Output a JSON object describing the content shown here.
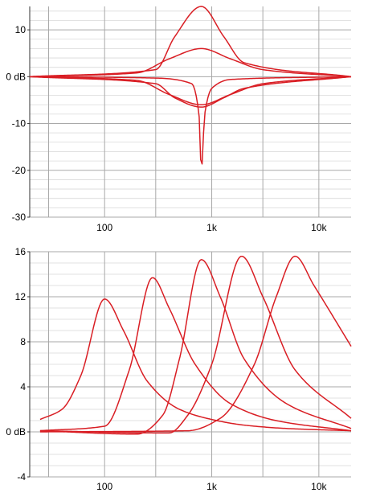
{
  "colors": {
    "curve": "#d91e24",
    "grid_major": "#a8a8a8",
    "grid_minor": "#d9d9d9",
    "axis": "#333333",
    "background": "#ffffff"
  },
  "chart_data": [
    {
      "type": "line",
      "x_scale": "log",
      "xlim": [
        20,
        20000
      ],
      "ylim": [
        -30,
        15
      ],
      "xticks": [
        {
          "value": 100,
          "label": "100"
        },
        {
          "value": 1000,
          "label": "1k"
        },
        {
          "value": 10000,
          "label": "10k"
        }
      ],
      "yticks": [
        {
          "value": 10,
          "label": "10"
        },
        {
          "value": 0,
          "label": "0 dB"
        },
        {
          "value": -10,
          "label": "-10"
        },
        {
          "value": -20,
          "label": "-20"
        },
        {
          "value": -30,
          "label": "-30"
        }
      ],
      "grid": true,
      "series": [
        {
          "x": [
            20,
            300,
            450,
            800,
            1300,
            2000,
            20000
          ],
          "y": [
            0,
            1.5,
            8.5,
            15,
            8.5,
            3,
            0
          ]
        },
        {
          "x": [
            20,
            200,
            400,
            800,
            1500,
            3000,
            20000
          ],
          "y": [
            0,
            0.8,
            3.8,
            6,
            3.8,
            1.5,
            0
          ]
        },
        {
          "x": [
            20,
            200,
            400,
            800,
            1500,
            3000,
            20000
          ],
          "y": [
            0,
            -0.8,
            -3.8,
            -6,
            -3.8,
            -1.5,
            0
          ]
        },
        {
          "x": [
            20,
            300,
            450,
            800,
            1300,
            2000,
            20000
          ],
          "y": [
            0,
            -1.5,
            -4.5,
            -6.5,
            -4.5,
            -2.5,
            0
          ]
        },
        {
          "x": [
            20,
            300,
            650,
            760,
            800,
            860,
            1000,
            1500,
            20000
          ],
          "y": [
            0,
            -0.3,
            -1.5,
            -8,
            -20,
            -8,
            -2.5,
            -0.6,
            0
          ]
        }
      ]
    },
    {
      "type": "line",
      "x_scale": "log",
      "xlim": [
        20,
        20000
      ],
      "ylim": [
        -4,
        16
      ],
      "xticks": [
        {
          "value": 100,
          "label": "100"
        },
        {
          "value": 1000,
          "label": "1k"
        },
        {
          "value": 10000,
          "label": "10k"
        }
      ],
      "yticks": [
        {
          "value": 16,
          "label": "16"
        },
        {
          "value": 12,
          "label": "12"
        },
        {
          "value": 8,
          "label": "8"
        },
        {
          "value": 4,
          "label": "4"
        },
        {
          "value": 0,
          "label": "0 dB"
        },
        {
          "value": -4,
          "label": "-4"
        }
      ],
      "grid": true,
      "series": [
        {
          "x": [
            25,
            40,
            60,
            100,
            150,
            250,
            500,
            1000,
            2000,
            5000,
            20000
          ],
          "y": [
            1.1,
            2,
            5,
            11.8,
            9,
            4.5,
            2,
            1.1,
            0.6,
            0.3,
            0.1
          ]
        },
        {
          "x": [
            25,
            100,
            170,
            280,
            400,
            700,
            1500,
            4000,
            20000
          ],
          "y": [
            0.1,
            0.5,
            5.5,
            13.7,
            11,
            6,
            2.5,
            1,
            0.1
          ]
        },
        {
          "x": [
            25,
            200,
            350,
            500,
            800,
            1200,
            2000,
            5000,
            20000
          ],
          "y": [
            0.1,
            -0.2,
            1.5,
            6.5,
            15.3,
            12,
            6.5,
            2.5,
            0.3
          ]
        },
        {
          "x": [
            25,
            400,
            600,
            1000,
            1900,
            3000,
            6000,
            20000
          ],
          "y": [
            0.1,
            -0.1,
            1.5,
            6,
            15.6,
            12,
            5.5,
            1.2
          ]
        },
        {
          "x": [
            25,
            600,
            1200,
            2500,
            4000,
            6000,
            9000,
            20000
          ],
          "y": [
            0,
            0.1,
            1.2,
            6,
            12,
            15.6,
            13,
            7.6
          ]
        }
      ]
    }
  ]
}
